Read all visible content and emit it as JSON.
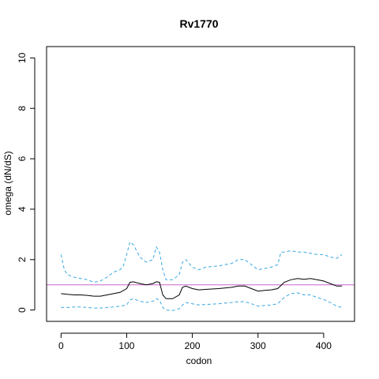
{
  "chart_data": {
    "type": "line",
    "title": "Rv1770",
    "xlabel": "codon",
    "ylabel": "omega (dN/dS)",
    "xlim": [
      -22,
      447
    ],
    "ylim": [
      -0.45,
      10.45
    ],
    "xticks": [
      0,
      100,
      200,
      300,
      400
    ],
    "yticks": [
      0,
      2,
      4,
      6,
      8,
      10
    ],
    "reference_line": {
      "y": 1,
      "color": "#cc66cc"
    },
    "grid": false,
    "legend": "none",
    "colors": {
      "mean": "#000000",
      "ci": "#3aa8e0"
    },
    "series": [
      {
        "style": "solid",
        "x": [
          0,
          10,
          20,
          30,
          40,
          50,
          60,
          70,
          80,
          90,
          100,
          105,
          110,
          120,
          130,
          140,
          145,
          150,
          155,
          160,
          170,
          180,
          185,
          190,
          200,
          210,
          220,
          240,
          260,
          270,
          280,
          290,
          300,
          310,
          320,
          330,
          340,
          350,
          360,
          370,
          380,
          390,
          400,
          410,
          420,
          428
        ],
        "values": [
          0.65,
          0.62,
          0.6,
          0.6,
          0.58,
          0.55,
          0.55,
          0.6,
          0.65,
          0.7,
          0.85,
          1.1,
          1.12,
          1.05,
          1.0,
          1.05,
          1.12,
          1.1,
          0.6,
          0.45,
          0.45,
          0.6,
          0.9,
          0.95,
          0.85,
          0.8,
          0.82,
          0.85,
          0.9,
          0.95,
          0.95,
          0.85,
          0.75,
          0.78,
          0.8,
          0.85,
          1.1,
          1.2,
          1.25,
          1.22,
          1.25,
          1.2,
          1.15,
          1.05,
          0.95,
          0.95
        ]
      },
      {
        "style": "dashed",
        "x": [
          0,
          5,
          10,
          20,
          30,
          40,
          50,
          60,
          70,
          80,
          90,
          95,
          100,
          105,
          110,
          120,
          130,
          140,
          145,
          150,
          155,
          160,
          170,
          180,
          185,
          190,
          200,
          210,
          220,
          240,
          260,
          270,
          280,
          290,
          300,
          310,
          320,
          330,
          335,
          340,
          350,
          360,
          370,
          380,
          390,
          400,
          410,
          420,
          428
        ],
        "values": [
          2.2,
          1.6,
          1.4,
          1.3,
          1.25,
          1.2,
          1.1,
          1.15,
          1.3,
          1.5,
          1.6,
          1.75,
          2.2,
          2.7,
          2.6,
          2.1,
          1.9,
          2.0,
          2.5,
          2.3,
          1.6,
          1.2,
          1.2,
          1.4,
          1.9,
          2.0,
          1.7,
          1.6,
          1.7,
          1.75,
          1.85,
          2.0,
          2.0,
          1.8,
          1.6,
          1.65,
          1.7,
          1.8,
          2.3,
          2.3,
          2.35,
          2.3,
          2.3,
          2.25,
          2.2,
          2.2,
          2.1,
          2.05,
          2.2
        ]
      },
      {
        "style": "dashed",
        "x": [
          0,
          10,
          20,
          30,
          40,
          50,
          60,
          70,
          80,
          90,
          100,
          105,
          110,
          120,
          130,
          140,
          145,
          150,
          155,
          160,
          170,
          180,
          185,
          190,
          200,
          210,
          220,
          240,
          260,
          270,
          280,
          290,
          300,
          310,
          320,
          330,
          340,
          350,
          360,
          370,
          380,
          390,
          400,
          410,
          420,
          428
        ],
        "values": [
          0.1,
          0.1,
          0.12,
          0.12,
          0.1,
          0.08,
          0.08,
          0.1,
          0.12,
          0.15,
          0.2,
          0.4,
          0.45,
          0.35,
          0.3,
          0.35,
          0.45,
          0.4,
          0.1,
          0.0,
          -0.02,
          0.05,
          0.2,
          0.3,
          0.25,
          0.2,
          0.22,
          0.25,
          0.3,
          0.33,
          0.33,
          0.25,
          0.15,
          0.18,
          0.2,
          0.25,
          0.5,
          0.65,
          0.68,
          0.6,
          0.6,
          0.5,
          0.42,
          0.3,
          0.15,
          0.1
        ]
      }
    ]
  }
}
